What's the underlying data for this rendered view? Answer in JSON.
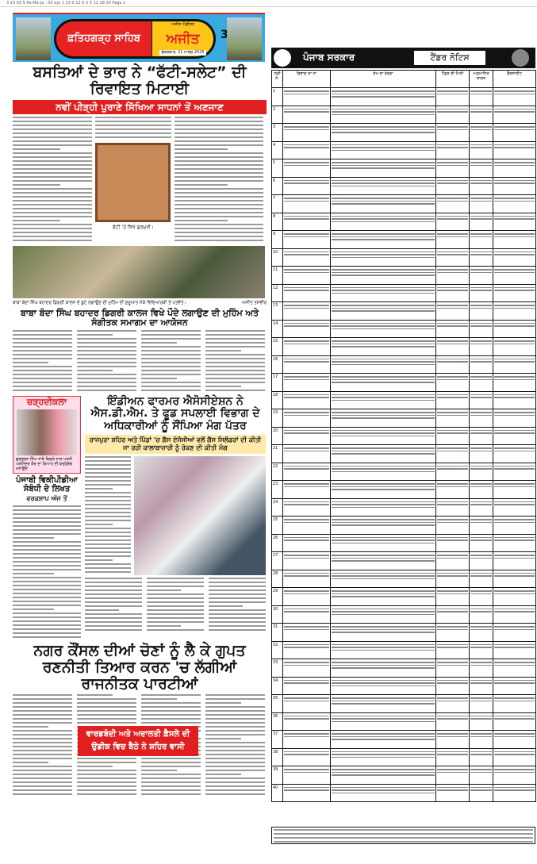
{
  "slug": "3 13 03 5-Pa-Ma-Ja - 03 ayt  1 13 0 12 0 2 5  11 18 20  Page 1",
  "masthead": {
    "place": "ਫ਼ਤਿਹਗੜ੍ਹ ਸਾਹਿਬ",
    "paper": "ਅਜੀਤ",
    "tag": "ਅਜੀਤ ਐਡੀਸ਼ਨ",
    "date": "ਸ਼ੁੱਕਰਵਾਰ, 21 ਮਾਰਚ 2025",
    "page": "3"
  },
  "story1": {
    "headline": "ਬਸਤਿਆਂ ਦੇ ਭਾਰ ਨੇ “ਫੱਟੀ-ਸਲੇਟ” ਦੀ ਰਿਵਾਇਤ ਮਿਟਾਈ",
    "subhead": "ਨਵੀਂ ਪੀੜ੍ਹੀ ਪੁਰਾਣੇ ਸਿੱਖਿਆ ਸਾਧਨਾਂ ਤੋਂ ਅਣਜਾਣ",
    "photo_caption": "ਫੱਟੀ 'ਤੇ ਲਿਖੇ ਗੁਰਮੁਖੀ।"
  },
  "story2": {
    "caption": "ਬਾਬਾ ਬੰਦਾ ਸਿੰਘ ਬਹਾਦਰ ਡਿਗਰੀ ਕਾਲਜ ਦੇ ਬੂਟੇ ਲਗਾਉਣ ਦੀ ਮੁਹਿੰਮ ਦੀ ਸ਼ੁਰੂਆਤ ਮੌਕੇ ਵਿਦਿਆਰਥੀ ਤੇ ਪਤਵੰਤੇ।",
    "credit": "ਅਜੀਤ ਤਸਵੀਰ",
    "headline": "ਬਾਬਾ ਬੰਦਾ ਸਿੰਘ ਬਹਾਦਰ ਡਿਗਰੀ ਕਾਲਜ ਵਿਖੇ ਪੌਦੇ ਲਗਾਉਣ ਦੀ ਮੁਹਿੰਮ ਅਤੇ ਸੰਗੀਤਕ ਸਮਾਗਮ ਦਾ ਆਯੋਜਨ"
  },
  "sidebar": {
    "label": "ਚੜ੍ਹਦੀਕਲਾ",
    "portrait_caption": "ਗੁਰਚਰਨ ਸਿੰਘ ਤਾਂਬੇ ਵਿਚਲੇ ਨਾਲ ਪਤਨੀ ਪਰਮਿੰਦਰ ਕੌਰ ਦਾ ਵਿਆਹ ਦੀ ਵਰ੍ਹੇਗੰਢ ਮਨਾਉਂਦੇ",
    "headline": "ਪੰਜਾਬੀ ਵਿਕੀਪੀਡੀਆ ਸੰਬੰਧੀ ਦੇ ਲਿਖਤ",
    "byline": "ਵਰਕਸ਼ਾਪ ਅੱਜ ਤੋਂ"
  },
  "story3": {
    "headline": "ਇੰਡੀਅਨ ਫਾਰਮਰ ਐਸੋਸੀਏਸ਼ਨ ਨੇ ਐਸ.ਡੀ.ਐਮ. ਤੇ ਫੂਡ ਸਪਲਾਈ ਵਿਭਾਗ ਦੇ ਅਧਿਕਾਰੀਆਂ ਨੂੰ ਸੌਂਪਿਆ ਮੰਗ ਪੱਤਰ",
    "subhead": "ਰਾਜਪੁਰਾ ਸ਼ਹਿਰ ਅਤੇ ਪਿੰਡਾਂ 'ਚ ਗੈਸ ਏਜੰਸੀਆਂ ਵਲੋਂ ਗੈਸ ਸਿਲੰਡਰਾਂ ਦੀ ਕੀਤੀ ਜਾ ਰਹੀ ਕਾਲਾਬਾਜ਼ਾਰੀ ਨੂੰ ਰੋਕਣ ਦੀ ਕੀਤੀ ਮੰਗ"
  },
  "story4": {
    "headline": "ਨਗਰ ਕੌਂਸਲ ਦੀਆਂ ਚੋਣਾਂ ਨੂੰ ਲੈ ਕੇ ਗੁਪਤ ਰਣਨੀਤੀ ਤਿਆਰ ਕਰਨ 'ਚ ਲੱਗੀਆਂ ਰਾਜਨੀਤਕ ਪਾਰਟੀਆਂ",
    "callout": "ਵਾਰਡਬੰਦੀ ਅਤੇ ਅਦਾਲਤੀ ਫ਼ੈਸਲੇ ਦੀ ਉਡੀਕ ਵਿਚ ਬੈਠੇ ਨੇ ਸ਼ਹਿਰ ਵਾਸੀ"
  },
  "tender": {
    "govt": "ਪੰਜਾਬ ਸਰਕਾਰ",
    "title": "ਟੈਂਡਰ ਨੋਟਿਸ",
    "columns": [
      "ਲੜੀ ਨੰ.",
      "ਵਿਭਾਗ ਦਾ ਨਾਂ",
      "ਕੰਮ ਦਾ ਵੇਰਵਾ",
      "ਟੈਂਡਰ ਦੀ ਮਿਤੀ",
      "ਅਨੁਮਾਨਿਤ ਲਾਗਤ",
      "ਵੈੱਬਸਾਈਟ"
    ],
    "row_count": 40
  }
}
